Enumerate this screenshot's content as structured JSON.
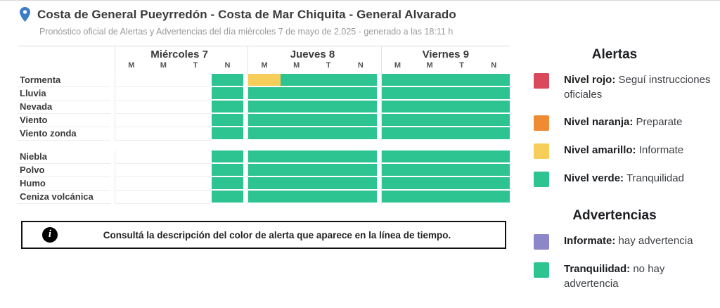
{
  "header": {
    "title": "Costa de General Pueyrredón - Costa de Mar Chiquita - General Alvarado",
    "subtitle": "Pronóstico oficial de Alertas y Advertencias del día miércoles 7 de mayo de 2.025 - generado a las 18:11 h"
  },
  "colors": {
    "green": "#2ec492",
    "yellow": "#f8ce5b",
    "red": "#d9495b",
    "orange": "#ef8c33",
    "purple": "#8b87c9"
  },
  "timeline": {
    "days": [
      {
        "label": "Miércoles 7",
        "periods": [
          "M",
          "M",
          "T",
          "N"
        ]
      },
      {
        "label": "Jueves 8",
        "periods": [
          "M",
          "M",
          "T",
          "N"
        ]
      },
      {
        "label": "Viernes 9",
        "periods": [
          "M",
          "M",
          "T",
          "N"
        ]
      }
    ],
    "groups": [
      {
        "rows": [
          {
            "label": "Tormenta",
            "cells": [
              [
                "none",
                "none",
                "none",
                "green"
              ],
              [
                "yellow",
                "green",
                "green",
                "green"
              ],
              [
                "green",
                "green",
                "green",
                "green"
              ]
            ]
          },
          {
            "label": "Lluvia",
            "cells": [
              [
                "none",
                "none",
                "none",
                "green"
              ],
              [
                "green",
                "green",
                "green",
                "green"
              ],
              [
                "green",
                "green",
                "green",
                "green"
              ]
            ]
          },
          {
            "label": "Nevada",
            "cells": [
              [
                "none",
                "none",
                "none",
                "green"
              ],
              [
                "green",
                "green",
                "green",
                "green"
              ],
              [
                "green",
                "green",
                "green",
                "green"
              ]
            ]
          },
          {
            "label": "Viento",
            "cells": [
              [
                "none",
                "none",
                "none",
                "green"
              ],
              [
                "green",
                "green",
                "green",
                "green"
              ],
              [
                "green",
                "green",
                "green",
                "green"
              ]
            ]
          },
          {
            "label": "Viento zonda",
            "cells": [
              [
                "none",
                "none",
                "none",
                "green"
              ],
              [
                "green",
                "green",
                "green",
                "green"
              ],
              [
                "green",
                "green",
                "green",
                "green"
              ]
            ]
          }
        ]
      },
      {
        "rows": [
          {
            "label": "Niebla",
            "cells": [
              [
                "none",
                "none",
                "none",
                "green"
              ],
              [
                "green",
                "green",
                "green",
                "green"
              ],
              [
                "green",
                "green",
                "green",
                "green"
              ]
            ]
          },
          {
            "label": "Polvo",
            "cells": [
              [
                "none",
                "none",
                "none",
                "green"
              ],
              [
                "green",
                "green",
                "green",
                "green"
              ],
              [
                "green",
                "green",
                "green",
                "green"
              ]
            ]
          },
          {
            "label": "Humo",
            "cells": [
              [
                "none",
                "none",
                "none",
                "green"
              ],
              [
                "green",
                "green",
                "green",
                "green"
              ],
              [
                "green",
                "green",
                "green",
                "green"
              ]
            ]
          },
          {
            "label": "Ceniza volcánica",
            "cells": [
              [
                "none",
                "none",
                "none",
                "green"
              ],
              [
                "green",
                "green",
                "green",
                "green"
              ],
              [
                "green",
                "green",
                "green",
                "green"
              ]
            ]
          }
        ]
      }
    ]
  },
  "info_banner": {
    "text": "Consultá la descripción del color de alerta que aparece en la línea de tiempo."
  },
  "legend": {
    "alertas": {
      "heading": "Alertas",
      "items": [
        {
          "color": "red",
          "label": "Nivel rojo:",
          "description": "Seguí instrucciones oficiales"
        },
        {
          "color": "orange",
          "label": "Nivel naranja:",
          "description": "Preparate"
        },
        {
          "color": "yellow",
          "label": "Nivel amarillo:",
          "description": "Informate"
        },
        {
          "color": "green",
          "label": "Nivel verde:",
          "description": "Tranquilidad"
        }
      ]
    },
    "advertencias": {
      "heading": "Advertencias",
      "items": [
        {
          "color": "purple",
          "label": "Informate:",
          "description": "hay advertencia"
        },
        {
          "color": "green",
          "label": "Tranquilidad:",
          "description": "no hay advertencia"
        }
      ]
    }
  }
}
